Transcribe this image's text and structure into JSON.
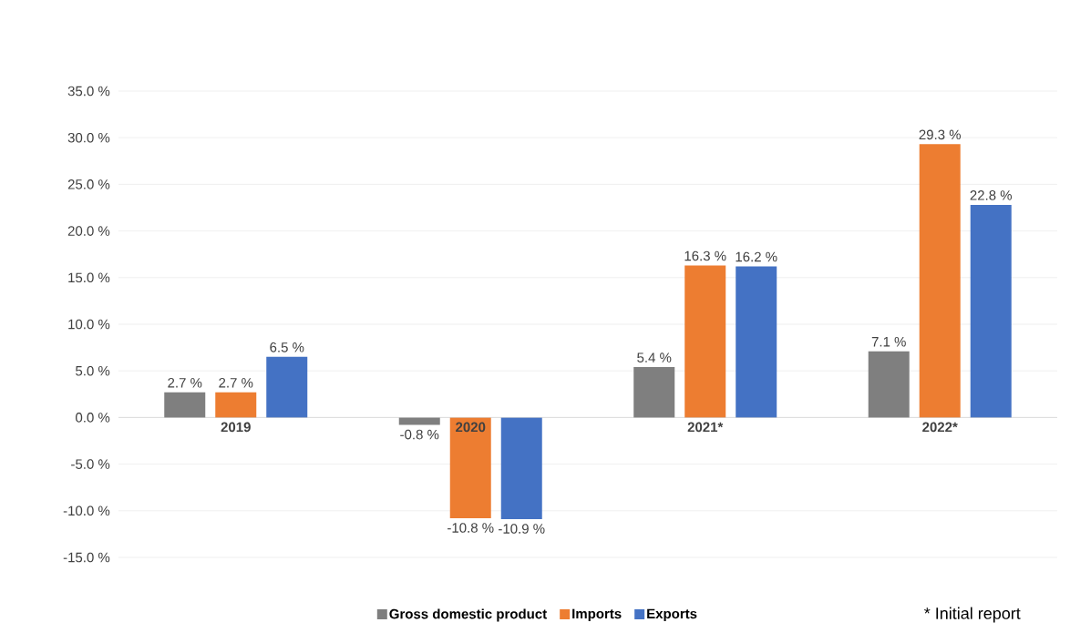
{
  "chart_data": {
    "type": "bar",
    "categories": [
      "2019",
      "2020",
      "2021*",
      "2022*"
    ],
    "series": [
      {
        "name": "Gross domestic product",
        "color": "#7f7f7f",
        "values": [
          2.7,
          -0.8,
          5.4,
          7.1
        ],
        "value_labels": [
          "2.7 %",
          "-0.8 %",
          "5.4 %",
          "7.1 %"
        ]
      },
      {
        "name": "Imports",
        "color": "#ed7d31",
        "values": [
          2.7,
          -10.8,
          16.3,
          29.3
        ],
        "value_labels": [
          "2.7 %",
          "-10.8 %",
          "16.3 %",
          "29.3 %"
        ]
      },
      {
        "name": "Exports",
        "color": "#4472c4",
        "values": [
          6.5,
          -10.9,
          16.2,
          22.8
        ],
        "value_labels": [
          "6.5 %",
          "-10.9 %",
          "16.2 %",
          "22.8 %"
        ]
      }
    ],
    "ylim": [
      -15,
      35
    ],
    "yticks": [
      {
        "value": -15,
        "label": "-15.0 %"
      },
      {
        "value": -10,
        "label": "-10.0 %"
      },
      {
        "value": -5,
        "label": "-5.0 %"
      },
      {
        "value": 0,
        "label": "0.0 %"
      },
      {
        "value": 5,
        "label": "5.0 %"
      },
      {
        "value": 10,
        "label": "10.0 %"
      },
      {
        "value": 15,
        "label": "15.0 %"
      },
      {
        "value": 20,
        "label": "20.0 %"
      },
      {
        "value": 25,
        "label": "25.0 %"
      },
      {
        "value": 30,
        "label": "30.0 %"
      },
      {
        "value": 35,
        "label": "35.0 %"
      }
    ],
    "grid": "y",
    "legend": "bottom",
    "annotations": [
      "* Initial report"
    ]
  }
}
